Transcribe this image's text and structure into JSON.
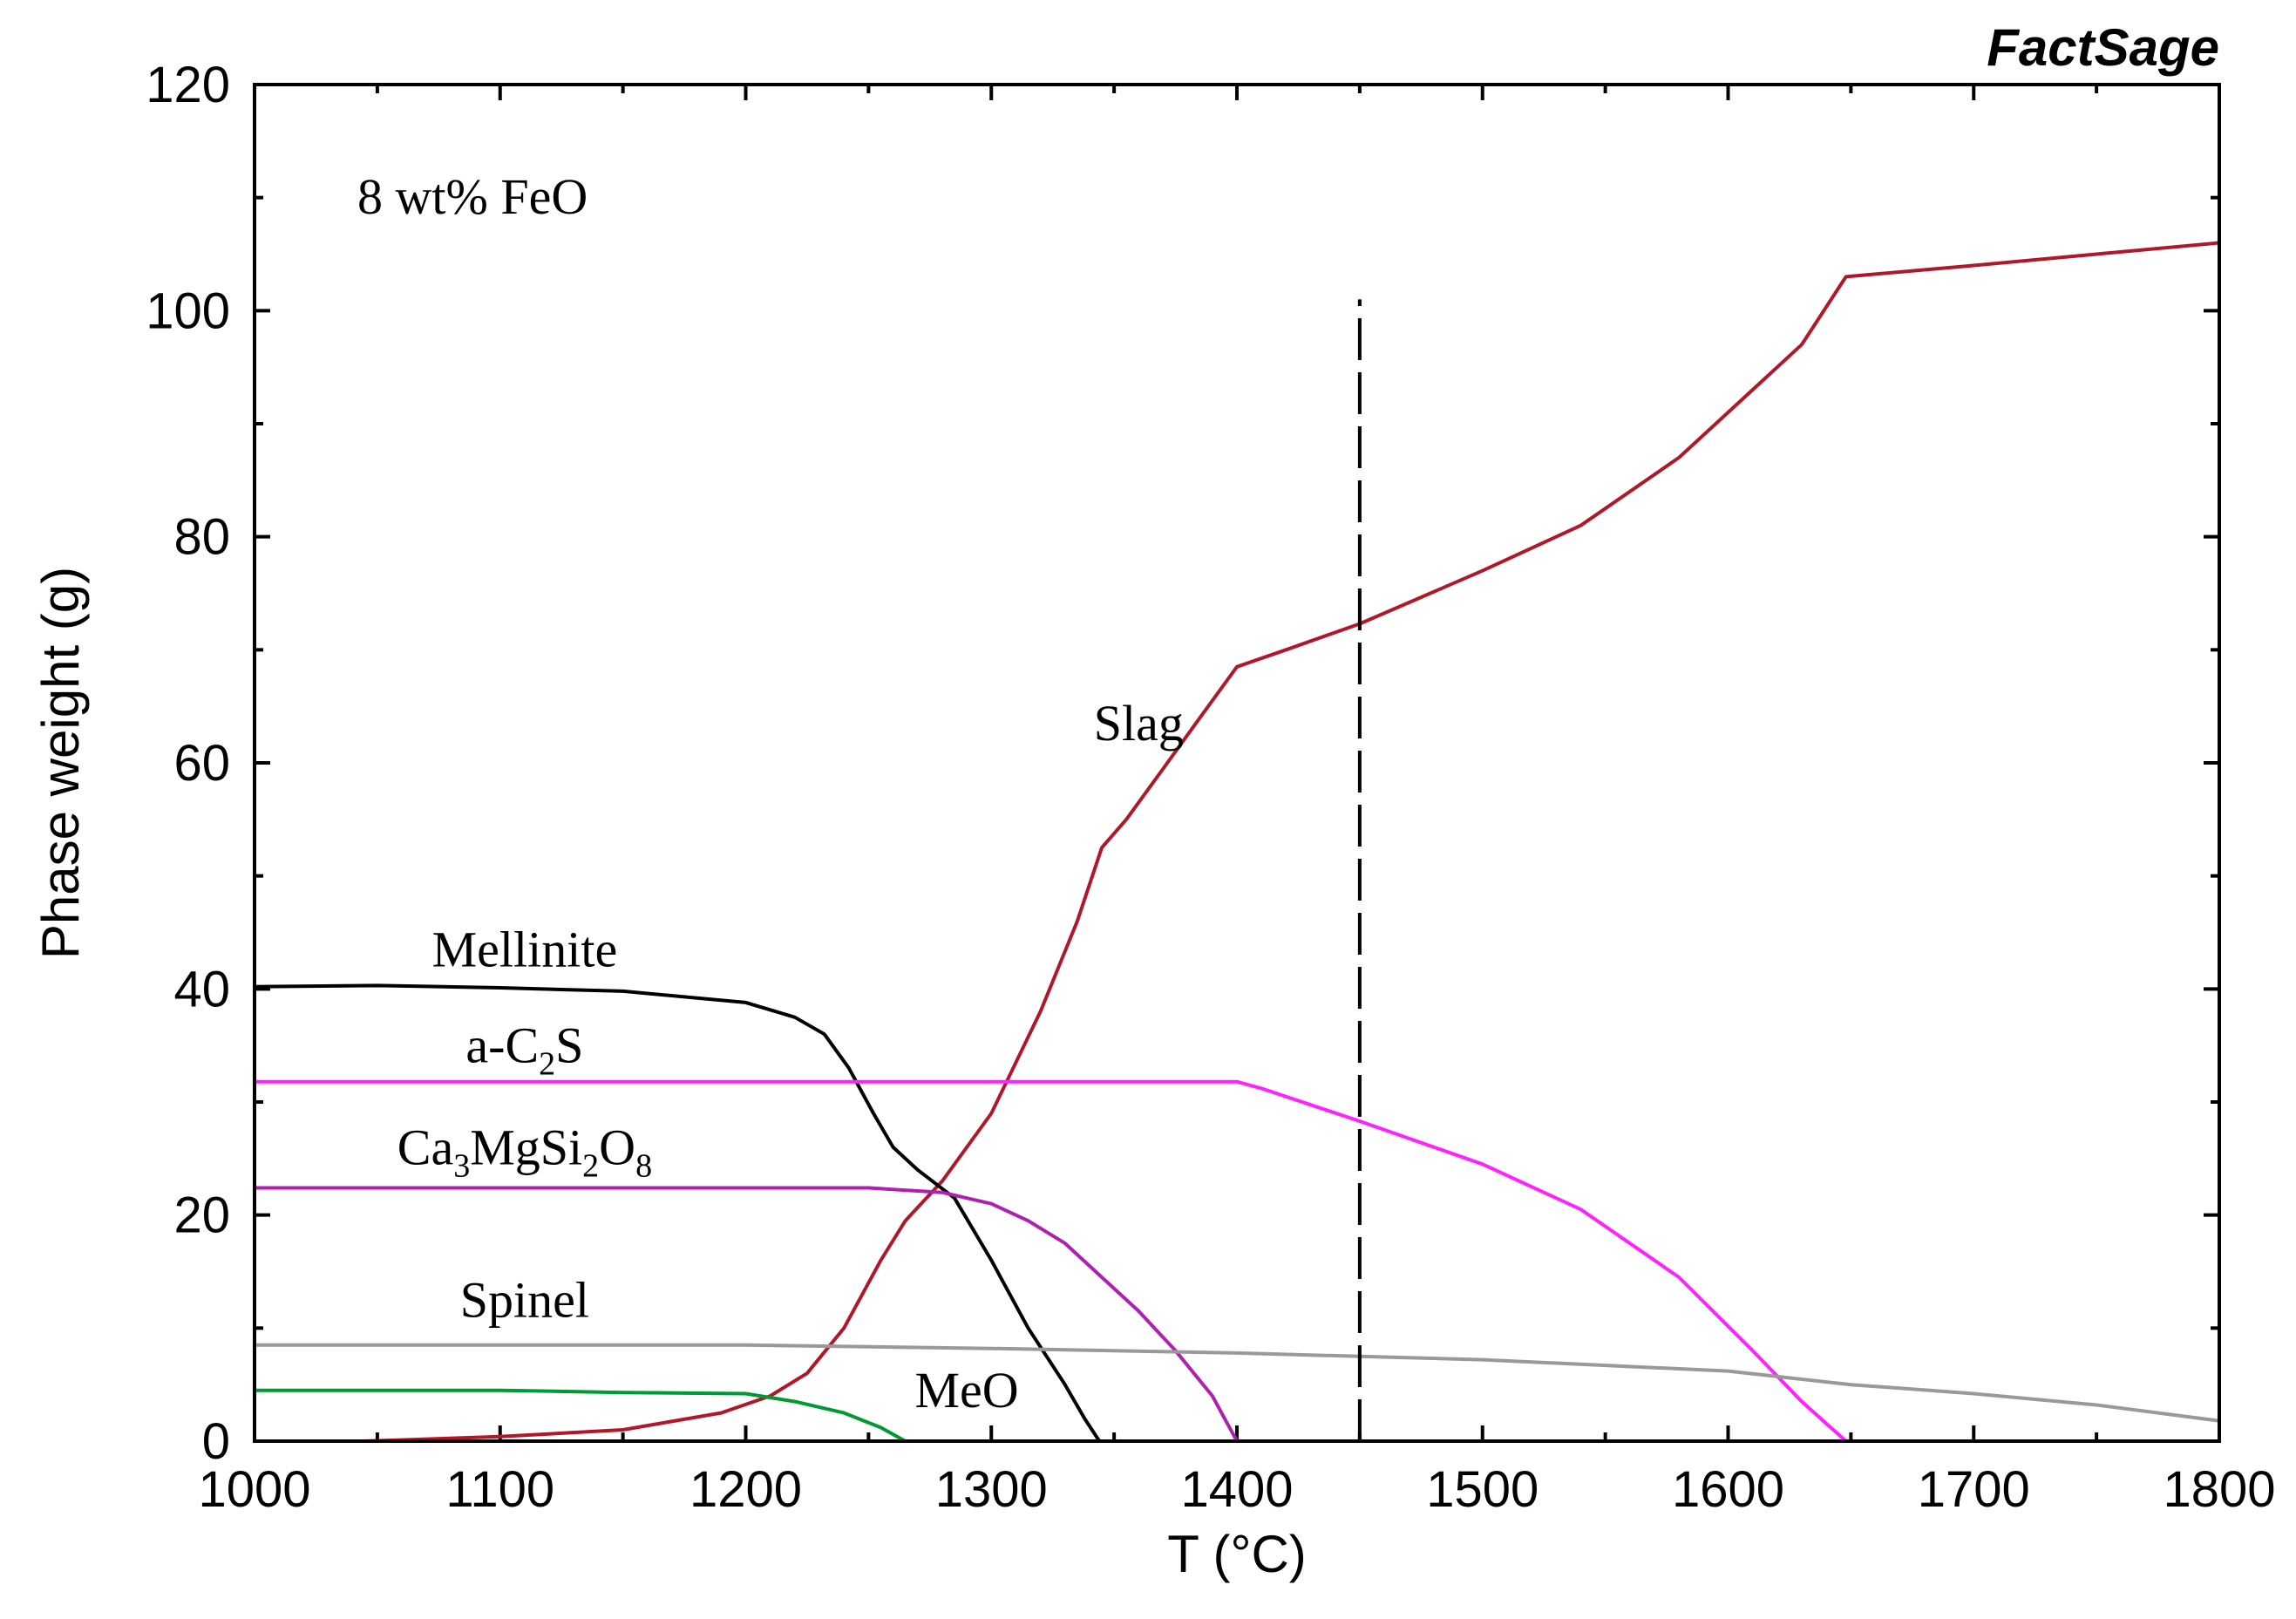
{
  "chart_data": {
    "type": "line",
    "watermark": "FactSage",
    "annotation": "8 wt% FeO",
    "xlabel": "T (°C)",
    "ylabel": "Phase weight (g)",
    "xlim": [
      1000,
      1800
    ],
    "ylim": [
      0,
      120
    ],
    "xticks": [
      1000,
      1100,
      1200,
      1300,
      1400,
      1500,
      1600,
      1700,
      1800
    ],
    "yticks": [
      0,
      20,
      40,
      60,
      80,
      100,
      120
    ],
    "vline": {
      "x": 1450,
      "style": "dashed",
      "ymax": 101
    },
    "series": [
      {
        "name": "Slag",
        "label_text": "Slag",
        "color": "#b0182a",
        "label_at": [
          1360,
          62
        ],
        "points": [
          [
            1045,
            0
          ],
          [
            1100,
            0.4
          ],
          [
            1150,
            1.0
          ],
          [
            1190,
            2.5
          ],
          [
            1210,
            4
          ],
          [
            1225,
            6
          ],
          [
            1240,
            10
          ],
          [
            1255,
            16
          ],
          [
            1265,
            19.5
          ],
          [
            1280,
            23
          ],
          [
            1300,
            29
          ],
          [
            1320,
            38
          ],
          [
            1335,
            46
          ],
          [
            1345,
            52.5
          ],
          [
            1355,
            55
          ],
          [
            1370,
            59.5
          ],
          [
            1385,
            64
          ],
          [
            1400,
            68.5
          ],
          [
            1420,
            70
          ],
          [
            1450,
            72.3
          ],
          [
            1500,
            77
          ],
          [
            1540,
            81
          ],
          [
            1580,
            87
          ],
          [
            1600,
            91
          ],
          [
            1630,
            97
          ],
          [
            1648,
            103
          ],
          [
            1700,
            104
          ],
          [
            1750,
            105
          ],
          [
            1800,
            106
          ]
        ]
      },
      {
        "name": "Mellinite",
        "label_text": "Mellinite",
        "color": "#000000",
        "label_at": [
          1110,
          42
        ],
        "points": [
          [
            1000,
            40.2
          ],
          [
            1050,
            40.3
          ],
          [
            1100,
            40.1
          ],
          [
            1150,
            39.8
          ],
          [
            1200,
            38.8
          ],
          [
            1220,
            37.5
          ],
          [
            1232,
            36
          ],
          [
            1242,
            33
          ],
          [
            1252,
            29
          ],
          [
            1260,
            26
          ],
          [
            1270,
            24
          ],
          [
            1285,
            21.5
          ],
          [
            1300,
            16
          ],
          [
            1315,
            10
          ],
          [
            1330,
            5
          ],
          [
            1338,
            2
          ],
          [
            1344,
            0
          ]
        ]
      },
      {
        "name": "a-C2S",
        "label_text": "a-C2S",
        "color": "#ff22ff",
        "label_at": [
          1110,
          33.5
        ],
        "points": [
          [
            1000,
            31.8
          ],
          [
            1100,
            31.8
          ],
          [
            1200,
            31.8
          ],
          [
            1300,
            31.8
          ],
          [
            1400,
            31.8
          ],
          [
            1410,
            31.2
          ],
          [
            1450,
            28.3
          ],
          [
            1500,
            24.5
          ],
          [
            1540,
            20.5
          ],
          [
            1580,
            14.5
          ],
          [
            1610,
            8
          ],
          [
            1630,
            3.5
          ],
          [
            1648,
            0
          ]
        ]
      },
      {
        "name": "Ca3MgSi2O8",
        "label_text": "Ca3MgSi2O8",
        "color": "#b020b0",
        "label_at": [
          1110,
          24.5
        ],
        "points": [
          [
            1000,
            22.4
          ],
          [
            1100,
            22.4
          ],
          [
            1200,
            22.4
          ],
          [
            1250,
            22.4
          ],
          [
            1280,
            22
          ],
          [
            1300,
            21
          ],
          [
            1315,
            19.5
          ],
          [
            1330,
            17.5
          ],
          [
            1345,
            14.5
          ],
          [
            1360,
            11.5
          ],
          [
            1375,
            8
          ],
          [
            1390,
            4
          ],
          [
            1400,
            0
          ]
        ]
      },
      {
        "name": "Spinel",
        "label_text": "Spinel",
        "color": "#999999",
        "label_at": [
          1110,
          11
        ],
        "points": [
          [
            1000,
            8.5
          ],
          [
            1200,
            8.5
          ],
          [
            1300,
            8.2
          ],
          [
            1400,
            7.8
          ],
          [
            1450,
            7.5
          ],
          [
            1500,
            7.2
          ],
          [
            1600,
            6.2
          ],
          [
            1650,
            5
          ],
          [
            1700,
            4.2
          ],
          [
            1750,
            3.2
          ],
          [
            1800,
            1.8
          ]
        ]
      },
      {
        "name": "MeO",
        "label_text": "MeO",
        "color": "#009933",
        "label_at": [
          1290,
          3
        ],
        "points": [
          [
            1000,
            4.5
          ],
          [
            1100,
            4.5
          ],
          [
            1150,
            4.3
          ],
          [
            1200,
            4.2
          ],
          [
            1220,
            3.5
          ],
          [
            1240,
            2.5
          ],
          [
            1255,
            1.2
          ],
          [
            1265,
            0
          ]
        ]
      }
    ]
  }
}
